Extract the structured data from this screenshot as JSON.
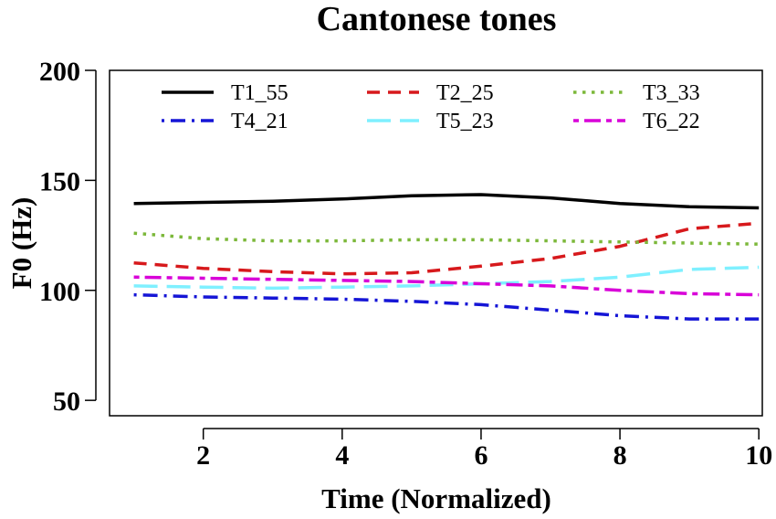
{
  "chart_data": {
    "type": "line",
    "title": "Cantonese tones",
    "xlabel": "Time (Normalized)",
    "ylabel": "F0 (Hz)",
    "xlim": [
      0.65,
      10.05
    ],
    "ylim": [
      43,
      200
    ],
    "xticks": [
      2,
      4,
      6,
      8,
      10
    ],
    "yticks": [
      50,
      100,
      150,
      200
    ],
    "x": [
      1,
      2,
      3,
      4,
      5,
      6,
      7,
      8,
      9,
      10
    ],
    "grid": false,
    "legend_position": "top",
    "series": [
      {
        "name": "T1_55",
        "color": "#000000",
        "dash": "solid",
        "values": [
          139.5,
          140,
          140.5,
          141.5,
          143,
          143.5,
          142,
          139.5,
          138,
          137.5
        ]
      },
      {
        "name": "T2_25",
        "color": "#d7191c",
        "dash": "dashed",
        "values": [
          112.5,
          110,
          108.5,
          107.5,
          108,
          111,
          114.5,
          120,
          128,
          130.5
        ]
      },
      {
        "name": "T3_33",
        "color": "#7cb83a",
        "dash": "dotted",
        "values": [
          126,
          123.5,
          122.5,
          122.5,
          123,
          123,
          122.5,
          122,
          121.5,
          121
        ]
      },
      {
        "name": "T4_21",
        "color": "#1515d6",
        "dash": "dotdash",
        "values": [
          98,
          97,
          96.5,
          96,
          95,
          93.5,
          91,
          88.5,
          87,
          87
        ]
      },
      {
        "name": "T5_23",
        "color": "#7ff0ff",
        "dash": "longdash",
        "values": [
          102,
          101.5,
          101,
          101.5,
          102,
          103,
          104,
          106,
          109.5,
          110.5
        ]
      },
      {
        "name": "T6_22",
        "color": "#d800d8",
        "dash": "twodash",
        "values": [
          106,
          105.5,
          105,
          104.5,
          104,
          103,
          102,
          100,
          98.5,
          98
        ]
      }
    ]
  }
}
